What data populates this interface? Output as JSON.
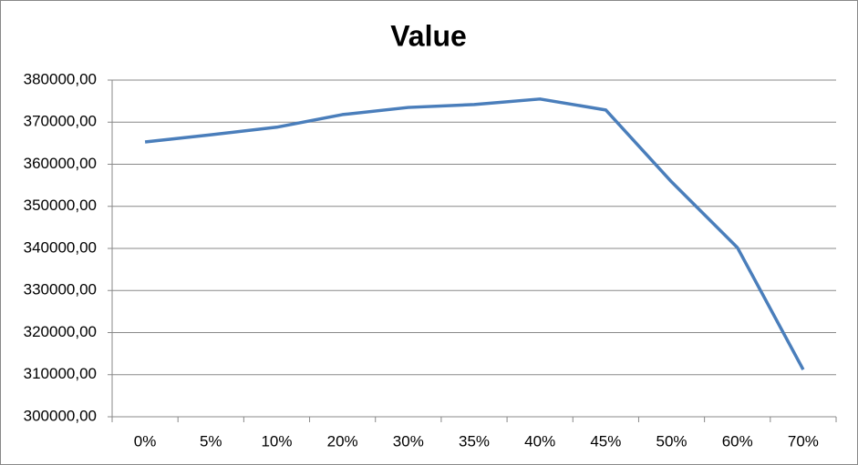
{
  "chart_data": {
    "type": "line",
    "title": "Value",
    "categories": [
      "0%",
      "5%",
      "10%",
      "20%",
      "30%",
      "35%",
      "40%",
      "45%",
      "50%",
      "60%",
      "70%"
    ],
    "series": [
      {
        "name": "Value",
        "color": "#4a7ebb",
        "values": [
          365300,
          367000,
          368800,
          371800,
          373500,
          374200,
          375500,
          372900,
          355800,
          340200,
          311200
        ]
      }
    ],
    "ylim": [
      300000,
      380000
    ],
    "yticks": [
      {
        "value": 300000,
        "label": "300000,00"
      },
      {
        "value": 310000,
        "label": "310000,00"
      },
      {
        "value": 320000,
        "label": "320000,00"
      },
      {
        "value": 330000,
        "label": "330000,00"
      },
      {
        "value": 340000,
        "label": "340000,00"
      },
      {
        "value": 350000,
        "label": "350000,00"
      },
      {
        "value": 360000,
        "label": "360000,00"
      },
      {
        "value": 370000,
        "label": "370000,00"
      },
      {
        "value": 380000,
        "label": "380000,00"
      }
    ],
    "grid": true
  }
}
